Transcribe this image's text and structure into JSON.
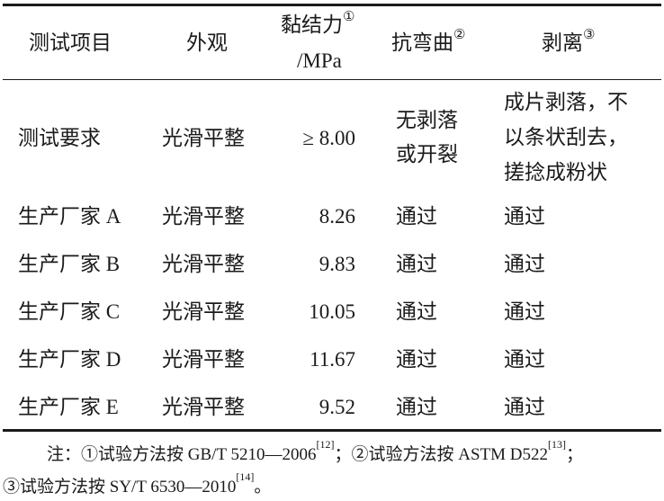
{
  "header": {
    "col1": "测试项目",
    "col2": "外观",
    "col3_line1": "黏结力",
    "col3_mark": "①",
    "col3_line2": "/MPa",
    "col4": "抗弯曲",
    "col4_mark": "②",
    "col5": "剥离",
    "col5_mark": "③"
  },
  "requirement": {
    "item": "测试要求",
    "appearance": "光滑平整",
    "adhesion": "≥ 8.00",
    "bending": [
      "无剥落",
      "或开裂"
    ],
    "peeling": [
      "成片剥落，不",
      "以条状刮去，",
      "搓捻成粉状"
    ]
  },
  "rows": [
    {
      "item": "生产厂家 A",
      "appearance": "光滑平整",
      "adhesion": "8.26",
      "bending": "通过",
      "peeling": "通过"
    },
    {
      "item": "生产厂家 B",
      "appearance": "光滑平整",
      "adhesion": "9.83",
      "bending": "通过",
      "peeling": "通过"
    },
    {
      "item": "生产厂家 C",
      "appearance": "光滑平整",
      "adhesion": "10.05",
      "bending": "通过",
      "peeling": "通过"
    },
    {
      "item": "生产厂家 D",
      "appearance": "光滑平整",
      "adhesion": "11.67",
      "bending": "通过",
      "peeling": "通过"
    },
    {
      "item": "生产厂家 E",
      "appearance": "光滑平整",
      "adhesion": "9.52",
      "bending": "通过",
      "peeling": "通过"
    }
  ],
  "note": {
    "prefix": "注：",
    "n1": "①试验方法按 GB/T 5210—2006",
    "n1_ref": "[12]",
    "sep1": "；",
    "n2": "②试验方法按 ASTM D522",
    "n2_ref": "[13]",
    "sep2": "；",
    "n3": "③试验方法按 SY/T 6530—2010",
    "n3_ref": "[14]",
    "end": "。"
  }
}
